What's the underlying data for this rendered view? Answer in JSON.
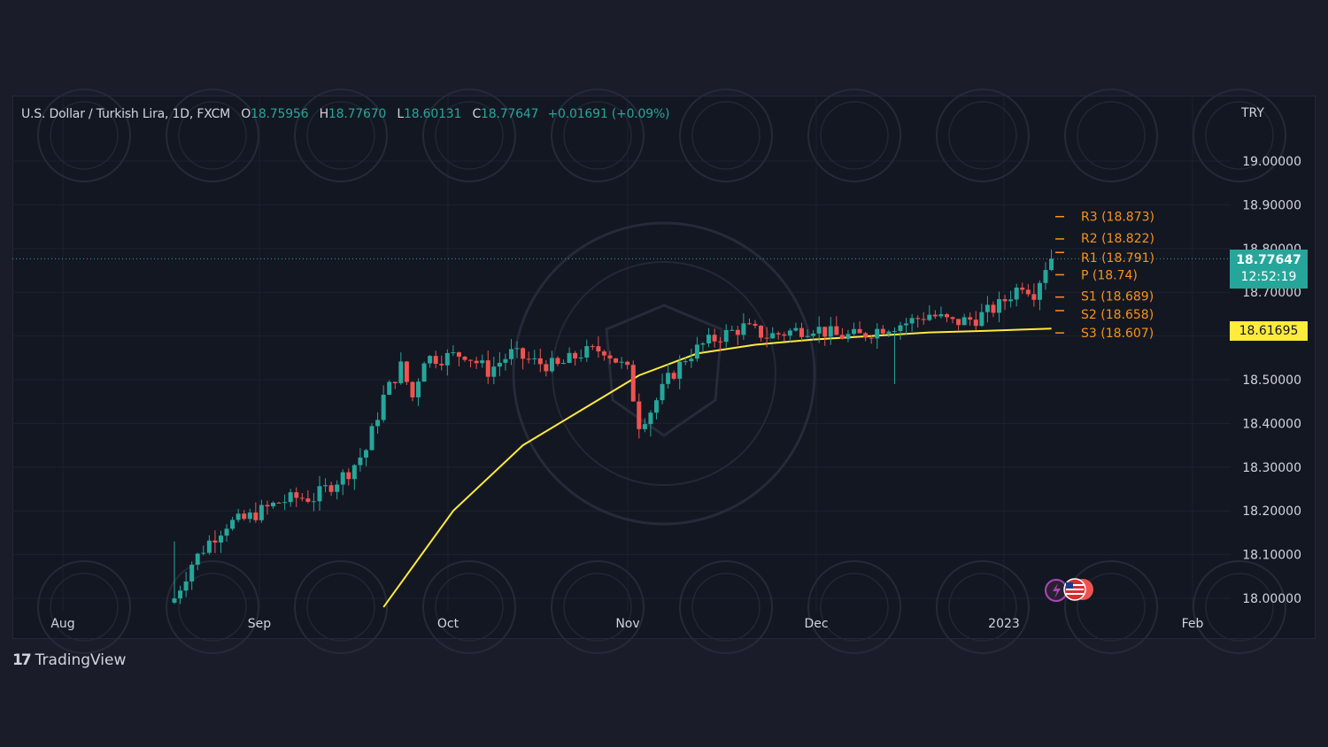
{
  "header": {
    "symbol": "U.S. Dollar / Turkish Lira, 1D, FXCM",
    "open_label": "O",
    "open": "18.75956",
    "high_label": "H",
    "high": "18.77670",
    "low_label": "L",
    "low": "18.60131",
    "close_label": "C",
    "close": "18.77647",
    "change": "+0.01691 (+0.09%)"
  },
  "currency": "TRY",
  "last_price_tag": {
    "price": "18.77647",
    "countdown": "12:52:19"
  },
  "ma_price_tag": {
    "price": "18.61695"
  },
  "brand": {
    "name": "TradingView"
  },
  "colors": {
    "up": "#26a69a",
    "down": "#ef5350",
    "ma": "#ffeb3b",
    "pivot": "#f7931a",
    "background": "#131722",
    "grid": "#1e2230"
  },
  "chart_data": {
    "type": "candlestick",
    "interval": "1D",
    "y_axis": {
      "ticks": [
        "19.00000",
        "18.90000",
        "18.80000",
        "18.70000",
        "18.60000",
        "18.50000",
        "18.40000",
        "18.30000",
        "18.20000",
        "18.10000",
        "18.00000"
      ],
      "range": [
        18.0,
        19.0
      ]
    },
    "x_axis": {
      "ticks": [
        "Aug",
        "Sep",
        "Oct",
        "Nov",
        "Dec",
        "2023",
        "Feb"
      ]
    },
    "pivot_levels": [
      {
        "label": "R3 (18.873)",
        "value": 18.873
      },
      {
        "label": "R2 (18.822)",
        "value": 18.822
      },
      {
        "label": "R1 (18.791)",
        "value": 18.791
      },
      {
        "label": "P (18.74)",
        "value": 18.74
      },
      {
        "label": "S1 (18.689)",
        "value": 18.689
      },
      {
        "label": "S2 (18.658)",
        "value": 18.658
      },
      {
        "label": "S3 (18.607)",
        "value": 18.607
      }
    ],
    "last_price": 18.77647,
    "series": [
      {
        "type": "candles",
        "anchors": [
          [
            0,
            18.0
          ],
          [
            3,
            18.08
          ],
          [
            6,
            18.13
          ],
          [
            9,
            18.17
          ],
          [
            12,
            18.18
          ],
          [
            15,
            18.2
          ],
          [
            18,
            18.22
          ],
          [
            21,
            18.23
          ],
          [
            24,
            18.23
          ],
          [
            27,
            18.26
          ],
          [
            30,
            18.29
          ],
          [
            33,
            18.34
          ],
          [
            36,
            18.46
          ],
          [
            39,
            18.53
          ],
          [
            41,
            18.46
          ],
          [
            43,
            18.55
          ],
          [
            46,
            18.55
          ],
          [
            50,
            18.56
          ],
          [
            54,
            18.52
          ],
          [
            58,
            18.56
          ],
          [
            62,
            18.54
          ],
          [
            66,
            18.53
          ],
          [
            70,
            18.56
          ],
          [
            74,
            18.57
          ],
          [
            78,
            18.52
          ],
          [
            80,
            18.4
          ],
          [
            82,
            18.43
          ],
          [
            85,
            18.5
          ],
          [
            88,
            18.55
          ],
          [
            91,
            18.58
          ],
          [
            94,
            18.6
          ],
          [
            98,
            18.62
          ],
          [
            102,
            18.6
          ],
          [
            106,
            18.61
          ],
          [
            110,
            18.62
          ],
          [
            114,
            18.6
          ],
          [
            118,
            18.6
          ],
          [
            122,
            18.62
          ],
          [
            126,
            18.63
          ],
          [
            130,
            18.65
          ],
          [
            134,
            18.63
          ],
          [
            138,
            18.64
          ],
          [
            142,
            18.67
          ],
          [
            146,
            18.72
          ],
          [
            148,
            18.7
          ],
          [
            150,
            18.76
          ],
          [
            151,
            18.7765
          ]
        ]
      },
      {
        "type": "moving_average",
        "points": [
          [
            36,
            17.98
          ],
          [
            48,
            18.2
          ],
          [
            60,
            18.35
          ],
          [
            70,
            18.43
          ],
          [
            80,
            18.51
          ],
          [
            90,
            18.56
          ],
          [
            100,
            18.58
          ],
          [
            110,
            18.592
          ],
          [
            120,
            18.6
          ],
          [
            130,
            18.608
          ],
          [
            140,
            18.612
          ],
          [
            151,
            18.617
          ]
        ]
      }
    ]
  }
}
